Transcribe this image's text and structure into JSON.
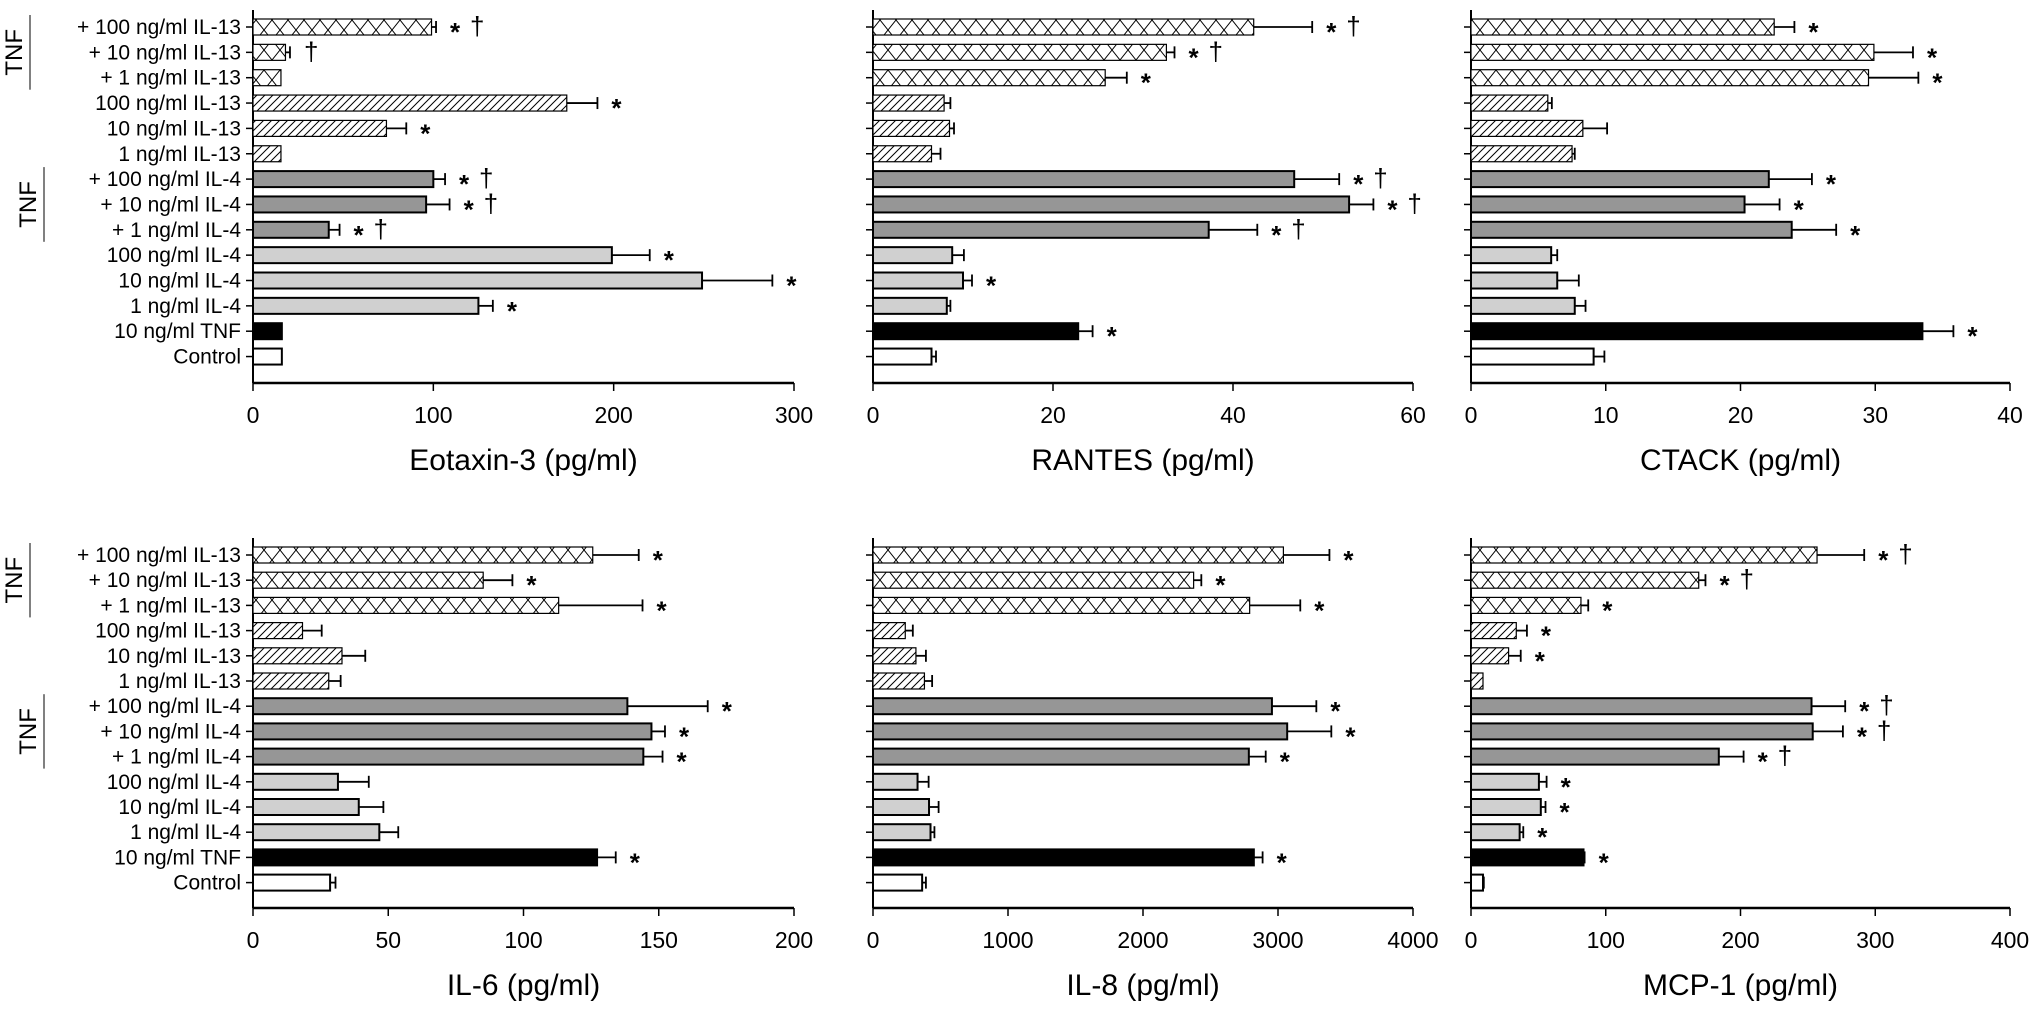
{
  "figure": {
    "categories": [
      "+ 100 ng/ml IL-13",
      "+ 10 ng/ml IL-13",
      "+ 1 ng/ml IL-13",
      "100 ng/ml IL-13",
      "10 ng/ml IL-13",
      "1 ng/ml IL-13",
      "+ 100 ng/ml IL-4",
      "+ 10 ng/ml IL-4",
      "+ 1 ng/ml IL-4",
      "100 ng/ml IL-4",
      "10 ng/ml IL-4",
      "1 ng/ml IL-4",
      "10 ng/ml TNF",
      "Control"
    ],
    "bar_styles": [
      "crosshatch",
      "crosshatch",
      "crosshatch",
      "diagonal",
      "diagonal",
      "diagonal",
      "darkgray",
      "darkgray",
      "darkgray",
      "lightgray",
      "lightgray",
      "lightgray",
      "black",
      "white"
    ],
    "group_labels": [
      {
        "text": "TNF",
        "rows": [
          0,
          2
        ]
      },
      {
        "text": "TNF",
        "rows": [
          6,
          8
        ]
      }
    ],
    "colors": {
      "darkgray": "#969696",
      "lightgray": "#d0d0d0",
      "black": "#000000",
      "white": "#ffffff",
      "outline": "#000000"
    }
  },
  "chart_data": [
    {
      "type": "bar",
      "orientation": "horizontal",
      "title": "",
      "xlabel": "Eotaxin-3 (pg/ml)",
      "ylabel": "",
      "xlim": [
        0,
        300
      ],
      "xticks": [
        0,
        100,
        200,
        300
      ],
      "values": [
        99,
        18,
        15.5,
        174,
        74,
        15.5,
        100,
        96,
        42,
        199,
        249,
        125,
        16,
        16
      ],
      "errors": [
        2.5,
        2.5,
        0,
        17,
        11,
        0,
        6.5,
        13,
        6,
        21,
        39,
        8,
        0,
        0
      ],
      "annotations": [
        "*†",
        "†",
        "",
        "*",
        "*",
        "",
        "*†",
        "*†",
        "*†",
        "*",
        "*",
        "*",
        "",
        ""
      ]
    },
    {
      "type": "bar",
      "orientation": "horizontal",
      "title": "",
      "xlabel": "RANTES (pg/ml)",
      "ylabel": "",
      "xlim": [
        0,
        60
      ],
      "xticks": [
        0,
        20,
        40,
        60
      ],
      "values": [
        42.3,
        32.6,
        25.8,
        7.9,
        8.5,
        6.5,
        46.8,
        52.9,
        37.3,
        8.8,
        10.0,
        8.2,
        22.8,
        6.5
      ],
      "errors": [
        6.5,
        0.9,
        2.4,
        0.7,
        0.5,
        1.0,
        5.0,
        2.7,
        5.4,
        1.3,
        1.0,
        0.4,
        1.6,
        0.5
      ],
      "annotations": [
        "*†",
        "*†",
        "*",
        "",
        "",
        "",
        "*†",
        "*†",
        "*†",
        "",
        "*",
        "",
        "*",
        ""
      ]
    },
    {
      "type": "bar",
      "orientation": "horizontal",
      "title": "",
      "xlabel": "CTACK (pg/ml)",
      "ylabel": "",
      "xlim": [
        0,
        40
      ],
      "xticks": [
        0,
        10,
        20,
        30,
        40
      ],
      "values": [
        22.5,
        29.9,
        29.5,
        5.7,
        8.3,
        7.5,
        22.1,
        20.3,
        23.8,
        5.95,
        6.4,
        7.7,
        33.5,
        9.1
      ],
      "errors": [
        1.5,
        2.9,
        3.7,
        0.3,
        1.8,
        0.2,
        3.2,
        2.6,
        3.3,
        0.45,
        1.6,
        0.8,
        2.3,
        0.8
      ],
      "annotations": [
        "*",
        "*",
        "*",
        "",
        "",
        "",
        "*",
        "*",
        "*",
        "",
        "",
        "",
        "*",
        ""
      ]
    },
    {
      "type": "bar",
      "orientation": "horizontal",
      "title": "",
      "xlabel": "IL-6 (pg/ml)",
      "ylabel": "",
      "xlim": [
        0,
        200
      ],
      "xticks": [
        0,
        50,
        100,
        150,
        200
      ],
      "values": [
        125.6,
        85.1,
        113,
        18.3,
        32.9,
        28.0,
        138.4,
        147.3,
        144.3,
        31.4,
        39.1,
        46.7,
        127.2,
        28.5
      ],
      "errors": [
        17,
        10.8,
        31,
        7.1,
        8.6,
        4.4,
        29.7,
        5.0,
        7.1,
        11.4,
        9.1,
        7.0,
        6.9,
        2.0
      ],
      "annotations": [
        "*",
        "*",
        "*",
        "",
        "",
        "",
        "*",
        "*",
        "*",
        "",
        "",
        "",
        "*",
        ""
      ]
    },
    {
      "type": "bar",
      "orientation": "horizontal",
      "title": "",
      "xlabel": "IL-8 (pg/ml)",
      "ylabel": "",
      "xlim": [
        0,
        4000
      ],
      "xticks": [
        0,
        1000,
        2000,
        3000,
        4000
      ],
      "values": [
        3040,
        2375,
        2790,
        239,
        318,
        381,
        2955,
        3068,
        2784,
        330,
        415,
        426,
        2821,
        364
      ],
      "errors": [
        341,
        57,
        375,
        56,
        74,
        57,
        329,
        327,
        125,
        82,
        71,
        29,
        65,
        28
      ],
      "annotations": [
        "*",
        "*",
        "*",
        "",
        "",
        "",
        "*",
        "*",
        "*",
        "",
        "",
        "",
        "*",
        ""
      ]
    },
    {
      "type": "bar",
      "orientation": "horizontal",
      "title": "",
      "xlabel": "MCP-1 (pg/ml)",
      "ylabel": "",
      "xlim": [
        0,
        400
      ],
      "xticks": [
        0,
        100,
        200,
        300,
        400
      ],
      "values": [
        256.8,
        169,
        81.6,
        33.6,
        27.9,
        8.9,
        252.7,
        253.6,
        183.9,
        50.4,
        51.8,
        36.1,
        83.5,
        8.9
      ],
      "errors": [
        35,
        5,
        5.4,
        7.9,
        9,
        0,
        25,
        22.4,
        18.4,
        5.7,
        3.5,
        2.7,
        0.8,
        0.6
      ],
      "annotations": [
        "*†",
        "*†",
        "*",
        "*",
        "*",
        "",
        "*†",
        "*†",
        "*†",
        "*",
        "*",
        "*",
        "*",
        ""
      ]
    }
  ]
}
